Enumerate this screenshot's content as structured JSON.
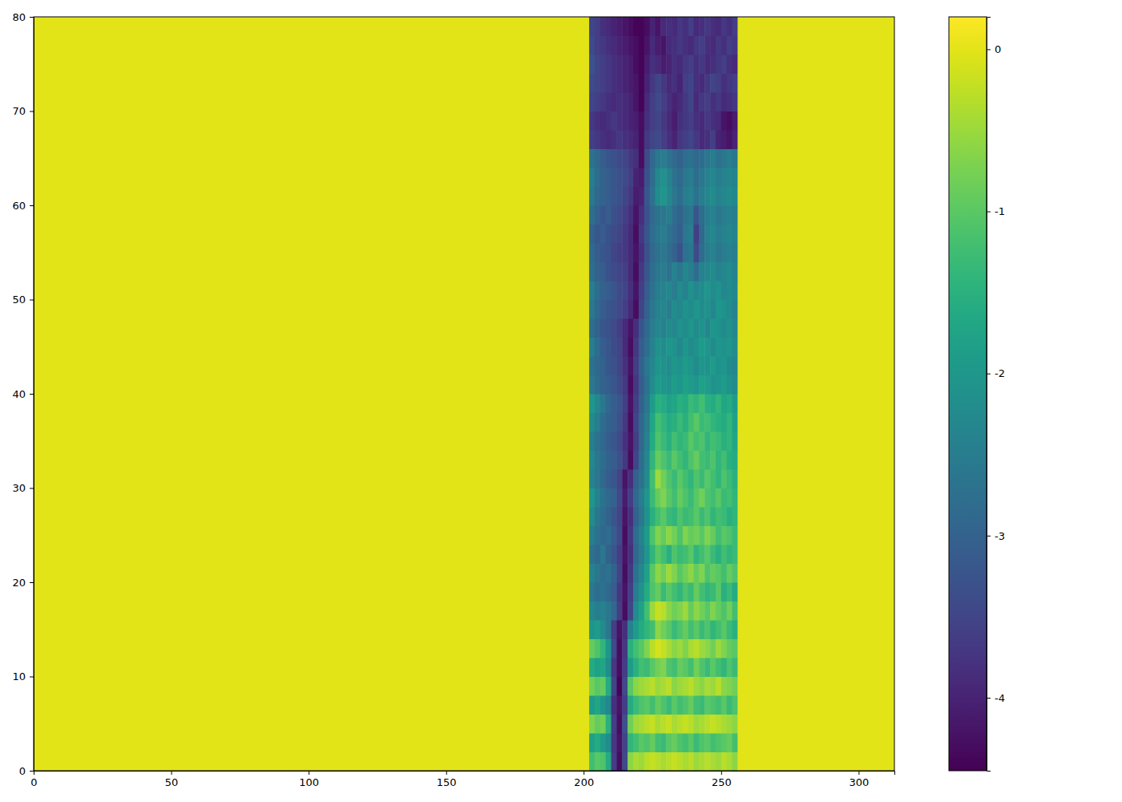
{
  "chart_data": {
    "type": "heatmap",
    "xlim": [
      0,
      313
    ],
    "ylim": [
      0,
      80
    ],
    "xticks": [
      0,
      50,
      100,
      150,
      200,
      250,
      300
    ],
    "yticks": [
      0,
      10,
      20,
      30,
      40,
      50,
      60,
      70,
      80
    ],
    "x_edges": [
      0,
      202,
      204,
      206,
      208,
      210,
      212,
      214,
      216,
      218,
      220,
      222,
      224,
      226,
      228,
      230,
      232,
      234,
      236,
      238,
      240,
      242,
      244,
      246,
      248,
      250,
      252,
      254,
      256,
      313
    ],
    "y_edges": [
      0,
      2,
      4,
      6,
      8,
      10,
      12,
      14,
      16,
      18,
      20,
      22,
      24,
      26,
      28,
      30,
      32,
      34,
      36,
      38,
      40,
      42,
      44,
      46,
      48,
      50,
      52,
      54,
      56,
      58,
      60,
      62,
      64,
      66,
      68,
      70,
      72,
      74,
      76,
      78,
      80
    ],
    "z": [
      [
        0,
        -1.2,
        -1.0,
        -1.1,
        -1.6,
        -3.6,
        -4.3,
        -3.4,
        -0.6,
        -0.4,
        -0.5,
        -0.3,
        -0.2,
        -0.3,
        -0.4,
        -0.3,
        -0.2,
        -0.3,
        -0.4,
        -0.3,
        -0.5,
        -0.4,
        -0.3,
        -0.4,
        -0.5,
        -0.3,
        -0.4,
        -0.6,
        0
      ],
      [
        0,
        -1.8,
        -1.6,
        -1.9,
        -2.2,
        -3.7,
        -4.2,
        -3.5,
        -1.4,
        -1.2,
        -1.0,
        -1.1,
        -0.9,
        -1.2,
        -1.3,
        -1.0,
        -0.9,
        -1.1,
        -1.2,
        -1.0,
        -1.3,
        -1.1,
        -1.0,
        -1.2,
        -1.1,
        -1.0,
        -0.9,
        -1.2,
        0
      ],
      [
        0,
        -0.7,
        -0.9,
        -0.8,
        -1.5,
        -3.6,
        -4.3,
        -3.3,
        -0.8,
        -0.5,
        -0.4,
        -0.3,
        -0.2,
        -0.4,
        -0.3,
        -0.2,
        -0.4,
        -0.3,
        -0.2,
        -0.3,
        -0.5,
        -0.4,
        -0.3,
        -0.2,
        -0.3,
        -0.4,
        -0.5,
        -0.6,
        0
      ],
      [
        0,
        -1.9,
        -1.7,
        -2.0,
        -2.3,
        -3.8,
        -4.2,
        -3.6,
        -1.6,
        -1.3,
        -1.1,
        -1.0,
        -1.2,
        -0.9,
        -1.1,
        -1.3,
        -1.0,
        -1.2,
        -1.1,
        -0.9,
        -1.2,
        -1.3,
        -1.0,
        -1.1,
        -1.2,
        -1.0,
        -1.3,
        -1.1,
        0
      ],
      [
        0,
        -0.8,
        -1.0,
        -0.9,
        -1.6,
        -3.5,
        -4.4,
        -3.4,
        -1.0,
        -0.6,
        -0.5,
        -0.4,
        -0.3,
        -0.5,
        -0.4,
        -0.3,
        -0.6,
        -0.5,
        -0.4,
        -0.3,
        -0.5,
        -0.6,
        -0.4,
        -0.5,
        -0.3,
        -0.6,
        -0.7,
        -0.8,
        0
      ],
      [
        0,
        -1.6,
        -1.8,
        -1.7,
        -2.2,
        -3.7,
        -4.3,
        -3.6,
        -1.9,
        -1.5,
        -1.2,
        -1.3,
        -1.0,
        -0.8,
        -0.7,
        -1.1,
        -1.2,
        -0.9,
        -1.0,
        -1.2,
        -0.8,
        -1.1,
        -1.3,
        -1.0,
        -1.2,
        -1.4,
        -1.1,
        -1.3,
        0
      ],
      [
        0,
        -0.9,
        -1.1,
        -1.4,
        -2.0,
        -3.4,
        -4.3,
        -3.7,
        -1.5,
        -1.2,
        -1.0,
        -0.7,
        -0.3,
        -0.1,
        -0.2,
        -0.4,
        -0.6,
        -0.5,
        -0.7,
        -0.4,
        -0.3,
        -0.5,
        -0.6,
        -0.8,
        -0.5,
        -0.7,
        -0.9,
        -1.0,
        0
      ],
      [
        0,
        -2.0,
        -1.9,
        -2.2,
        -2.6,
        -3.6,
        -4.2,
        -3.8,
        -2.4,
        -1.9,
        -1.6,
        -1.4,
        -1.2,
        -0.6,
        -0.8,
        -1.0,
        -1.3,
        -1.1,
        -0.9,
        -1.2,
        -1.0,
        -1.3,
        -1.1,
        -1.4,
        -1.2,
        -1.0,
        -1.3,
        -1.5,
        0
      ],
      [
        0,
        -2.3,
        -2.5,
        -2.4,
        -2.6,
        -2.9,
        -3.6,
        -4.3,
        -3.5,
        -2.2,
        -1.8,
        -1.2,
        -0.5,
        -0.2,
        -0.3,
        -0.6,
        -0.8,
        -0.7,
        -0.5,
        -0.9,
        -0.6,
        -0.8,
        -1.0,
        -0.7,
        -0.9,
        -1.1,
        -0.8,
        -1.2,
        0
      ],
      [
        0,
        -2.6,
        -2.8,
        -2.7,
        -2.9,
        -3.1,
        -3.7,
        -4.2,
        -3.6,
        -2.5,
        -2.1,
        -1.6,
        -1.1,
        -0.9,
        -1.3,
        -1.0,
        -1.2,
        -1.4,
        -1.1,
        -1.3,
        -0.9,
        -1.2,
        -1.4,
        -1.3,
        -1.0,
        -1.5,
        -1.3,
        -1.6,
        0
      ],
      [
        0,
        -2.4,
        -2.6,
        -2.8,
        -2.7,
        -3.0,
        -3.5,
        -4.3,
        -3.7,
        -2.7,
        -2.3,
        -1.8,
        -1.0,
        -0.6,
        -0.8,
        -0.5,
        -0.7,
        -1.0,
        -0.8,
        -0.6,
        -0.9,
        -0.7,
        -1.1,
        -0.9,
        -1.0,
        -1.2,
        -0.9,
        -1.1,
        0
      ],
      [
        0,
        -2.7,
        -2.9,
        -2.6,
        -3.0,
        -3.2,
        -3.6,
        -4.2,
        -3.8,
        -2.9,
        -2.5,
        -2.0,
        -1.4,
        -1.0,
        -1.2,
        -1.5,
        -1.1,
        -1.3,
        -1.2,
        -1.0,
        -1.4,
        -1.2,
        -1.0,
        -1.3,
        -1.5,
        -1.2,
        -1.4,
        -1.3,
        0
      ],
      [
        0,
        -2.5,
        -2.7,
        -2.9,
        -2.8,
        -3.1,
        -3.4,
        -4.3,
        -3.7,
        -2.8,
        -2.4,
        -1.9,
        -1.1,
        -0.7,
        -0.9,
        -0.6,
        -0.8,
        -1.1,
        -0.7,
        -0.9,
        -0.8,
        -1.0,
        -0.7,
        -0.9,
        -1.2,
        -1.0,
        -1.1,
        -1.3,
        0
      ],
      [
        0,
        -2.2,
        -2.6,
        -2.8,
        -3.0,
        -3.2,
        -3.5,
        -4.2,
        -3.8,
        -3.0,
        -2.6,
        -2.1,
        -1.5,
        -1.2,
        -1.0,
        -1.3,
        -1.4,
        -1.1,
        -1.3,
        -1.2,
        -1.0,
        -1.3,
        -1.1,
        -1.4,
        -1.2,
        -1.3,
        -1.5,
        -1.4,
        0
      ],
      [
        0,
        -2.0,
        -2.4,
        -2.7,
        -2.9,
        -3.0,
        -3.4,
        -4.1,
        -3.6,
        -2.9,
        -2.5,
        -2.0,
        -1.3,
        -0.9,
        -0.7,
        -1.0,
        -1.2,
        -0.9,
        -1.1,
        -1.3,
        -1.0,
        -0.8,
        -1.1,
        -1.2,
        -1.0,
        -1.3,
        -1.2,
        -1.4,
        0
      ],
      [
        0,
        -2.4,
        -2.6,
        -2.9,
        -3.1,
        -3.2,
        -3.5,
        -4.2,
        -3.8,
        -3.0,
        -2.7,
        -2.2,
        -1.2,
        -0.5,
        -0.8,
        -1.1,
        -1.3,
        -1.0,
        -1.2,
        -1.4,
        -1.1,
        -1.3,
        -1.0,
        -1.2,
        -1.4,
        -1.1,
        -1.3,
        -1.5,
        0
      ],
      [
        0,
        -2.3,
        -2.6,
        -2.8,
        -3.0,
        -3.1,
        -3.3,
        -3.7,
        -4.3,
        -3.5,
        -2.8,
        -2.3,
        -1.4,
        -0.9,
        -1.1,
        -1.3,
        -1.0,
        -1.2,
        -1.4,
        -1.1,
        -0.9,
        -1.2,
        -1.3,
        -1.1,
        -1.4,
        -1.2,
        -1.5,
        -1.6,
        0
      ],
      [
        0,
        -2.5,
        -2.7,
        -2.9,
        -3.1,
        -3.2,
        -3.4,
        -3.8,
        -4.2,
        -3.6,
        -2.9,
        -2.4,
        -1.6,
        -1.1,
        -1.3,
        -1.5,
        -1.2,
        -1.4,
        -1.3,
        -1.0,
        -1.2,
        -1.1,
        -1.4,
        -1.2,
        -1.3,
        -1.5,
        -1.4,
        -1.7,
        0
      ],
      [
        0,
        -2.2,
        -2.5,
        -2.8,
        -3.0,
        -3.1,
        -3.3,
        -3.7,
        -4.3,
        -3.5,
        -2.9,
        -2.5,
        -1.7,
        -1.2,
        -1.4,
        -1.6,
        -1.5,
        -1.3,
        -1.5,
        -1.2,
        -1.0,
        -1.3,
        -1.2,
        -1.4,
        -1.5,
        -1.6,
        -1.4,
        -1.8,
        0
      ],
      [
        0,
        -2.0,
        -2.3,
        -2.6,
        -2.9,
        -3.1,
        -3.2,
        -3.6,
        -4.2,
        -3.6,
        -3.0,
        -2.6,
        -1.9,
        -1.5,
        -1.6,
        -1.8,
        -1.7,
        -1.5,
        -1.6,
        -1.3,
        -1.4,
        -1.2,
        -1.5,
        -1.6,
        -1.4,
        -1.7,
        -1.6,
        -1.9,
        0
      ],
      [
        0,
        -2.6,
        -2.8,
        -3.0,
        -3.1,
        -3.2,
        -3.4,
        -3.7,
        -4.3,
        -3.7,
        -3.1,
        -2.7,
        -2.2,
        -1.9,
        -2.0,
        -2.1,
        -1.9,
        -2.0,
        -1.8,
        -1.9,
        -2.0,
        -1.8,
        -1.9,
        -2.1,
        -2.0,
        -1.9,
        -2.1,
        -2.2,
        0
      ],
      [
        0,
        -2.7,
        -2.9,
        -3.0,
        -3.2,
        -3.3,
        -3.5,
        -3.8,
        -4.2,
        -3.6,
        -3.0,
        -2.6,
        -2.3,
        -2.0,
        -2.1,
        -2.2,
        -2.0,
        -2.1,
        -1.9,
        -2.0,
        -2.2,
        -2.0,
        -2.1,
        -1.9,
        -2.1,
        -2.0,
        -2.2,
        -2.3,
        0
      ],
      [
        0,
        -2.5,
        -2.8,
        -3.1,
        -3.2,
        -3.4,
        -3.5,
        -3.9,
        -4.3,
        -3.7,
        -3.1,
        -2.8,
        -2.4,
        -2.1,
        -2.2,
        -2.0,
        -2.1,
        -2.3,
        -2.0,
        -2.2,
        -2.1,
        -1.9,
        -2.0,
        -2.2,
        -2.0,
        -2.1,
        -2.0,
        -2.2,
        0
      ],
      [
        0,
        -2.8,
        -3.0,
        -3.2,
        -3.3,
        -3.4,
        -3.6,
        -3.9,
        -4.2,
        -3.8,
        -3.2,
        -2.9,
        -2.5,
        -2.3,
        -2.4,
        -2.2,
        -2.3,
        -2.1,
        -2.2,
        -2.0,
        -2.2,
        -2.1,
        -2.3,
        -2.0,
        -2.1,
        -2.2,
        -2.1,
        -2.3,
        0
      ],
      [
        0,
        -2.6,
        -2.9,
        -3.1,
        -3.2,
        -3.3,
        -3.4,
        -3.6,
        -3.9,
        -4.3,
        -3.5,
        -3.0,
        -2.6,
        -2.4,
        -2.3,
        -2.5,
        -2.2,
        -2.3,
        -2.1,
        -2.2,
        -2.0,
        -2.2,
        -2.1,
        -2.3,
        -2.0,
        -2.1,
        -2.2,
        -2.4,
        0
      ],
      [
        0,
        -2.5,
        -2.8,
        -3.0,
        -3.1,
        -3.2,
        -3.4,
        -3.5,
        -3.8,
        -4.2,
        -3.6,
        -3.1,
        -2.7,
        -2.5,
        -2.4,
        -2.3,
        -2.5,
        -2.2,
        -2.4,
        -2.1,
        -2.3,
        -2.2,
        -2.0,
        -2.2,
        -2.1,
        -2.3,
        -2.2,
        -2.3,
        0
      ],
      [
        0,
        -2.8,
        -3.0,
        -3.1,
        -3.3,
        -3.4,
        -3.5,
        -3.6,
        -3.9,
        -4.3,
        -3.7,
        -3.2,
        -2.8,
        -2.6,
        -2.5,
        -2.7,
        -2.4,
        -2.6,
        -2.3,
        -2.5,
        -2.8,
        -2.4,
        -2.3,
        -2.2,
        -2.4,
        -2.3,
        -2.2,
        -2.4,
        0
      ],
      [
        0,
        -2.9,
        -3.1,
        -3.2,
        -3.3,
        -3.5,
        -3.6,
        -3.7,
        -3.9,
        -4.2,
        -3.8,
        -3.3,
        -2.9,
        -2.7,
        -2.6,
        -2.8,
        -3.0,
        -3.3,
        -2.7,
        -2.6,
        -3.4,
        -2.8,
        -2.5,
        -2.4,
        -2.6,
        -2.5,
        -2.4,
        -2.5,
        0
      ],
      [
        0,
        -3.0,
        -3.2,
        -3.1,
        -3.3,
        -3.4,
        -3.5,
        -3.7,
        -3.9,
        -4.3,
        -3.7,
        -3.2,
        -2.8,
        -2.6,
        -2.5,
        -2.7,
        -2.9,
        -3.1,
        -2.6,
        -2.5,
        -3.6,
        -2.9,
        -2.4,
        -2.3,
        -2.5,
        -2.4,
        -2.3,
        -2.4,
        0
      ],
      [
        0,
        -2.8,
        -3.0,
        -3.2,
        -3.1,
        -3.3,
        -3.4,
        -3.6,
        -3.8,
        -4.2,
        -3.8,
        -3.3,
        -2.9,
        -2.7,
        -2.6,
        -2.5,
        -2.8,
        -3.0,
        -2.7,
        -2.6,
        -3.2,
        -2.8,
        -2.5,
        -2.4,
        -2.6,
        -2.5,
        -2.4,
        -2.5,
        0
      ],
      [
        0,
        -2.6,
        -2.9,
        -3.0,
        -3.1,
        -3.2,
        -3.3,
        -3.5,
        -3.7,
        -4.1,
        -4.0,
        -3.2,
        -2.7,
        -2.2,
        -2.0,
        -2.3,
        -2.6,
        -2.8,
        -2.5,
        -2.4,
        -2.7,
        -2.5,
        -2.3,
        -2.2,
        -2.4,
        -2.3,
        -2.2,
        -2.3,
        0
      ],
      [
        0,
        -2.5,
        -2.8,
        -3.0,
        -3.1,
        -3.2,
        -3.3,
        -3.4,
        -3.6,
        -4.0,
        -4.1,
        -3.3,
        -2.8,
        -2.3,
        -2.1,
        -2.4,
        -2.7,
        -2.9,
        -2.6,
        -2.5,
        -2.8,
        -2.6,
        -2.4,
        -2.3,
        -2.5,
        -2.4,
        -2.3,
        -2.4,
        0
      ],
      [
        0,
        -2.7,
        -2.9,
        -3.1,
        -3.2,
        -3.3,
        -3.4,
        -3.5,
        -3.7,
        -3.8,
        -4.3,
        -3.4,
        -2.9,
        -2.6,
        -2.5,
        -2.7,
        -2.9,
        -3.0,
        -2.8,
        -2.7,
        -2.9,
        -2.8,
        -2.6,
        -2.5,
        -2.7,
        -2.6,
        -2.5,
        -2.6,
        0
      ],
      [
        0,
        -3.6,
        -3.7,
        -3.8,
        -3.9,
        -3.8,
        -3.7,
        -3.8,
        -3.9,
        -4.0,
        -4.3,
        -3.7,
        -3.5,
        -3.4,
        -3.6,
        -3.8,
        -4.0,
        -3.7,
        -3.6,
        -3.5,
        -3.7,
        -3.9,
        -3.8,
        -3.6,
        -4.0,
        -4.1,
        -4.2,
        -4.0,
        0
      ],
      [
        0,
        -3.7,
        -3.8,
        -3.9,
        -3.8,
        -3.7,
        -3.8,
        -3.9,
        -4.0,
        -4.1,
        -4.3,
        -3.8,
        -3.6,
        -3.5,
        -3.7,
        -3.9,
        -4.1,
        -3.8,
        -3.7,
        -3.6,
        -3.8,
        -3.9,
        -3.7,
        -3.8,
        -3.9,
        -4.2,
        -4.3,
        -4.1,
        0
      ],
      [
        0,
        -3.5,
        -3.6,
        -3.7,
        -3.8,
        -3.9,
        -3.8,
        -3.9,
        -4.0,
        -4.2,
        -4.4,
        -3.9,
        -3.6,
        -3.4,
        -3.6,
        -3.8,
        -4.0,
        -3.9,
        -3.7,
        -3.5,
        -3.9,
        -3.7,
        -3.6,
        -3.8,
        -3.7,
        -3.9,
        -3.8,
        -3.7,
        0
      ],
      [
        0,
        -3.4,
        -3.5,
        -3.6,
        -3.7,
        -3.8,
        -3.9,
        -4.0,
        -4.1,
        -4.2,
        -4.4,
        -4.0,
        -3.7,
        -3.5,
        -3.7,
        -3.9,
        -3.8,
        -4.0,
        -3.6,
        -3.5,
        -3.8,
        -3.9,
        -3.7,
        -3.5,
        -3.6,
        -3.8,
        -3.7,
        -3.6,
        0
      ],
      [
        0,
        -3.3,
        -3.5,
        -3.6,
        -3.7,
        -3.8,
        -3.9,
        -4.0,
        -4.1,
        -4.3,
        -4.4,
        -4.1,
        -3.8,
        -3.9,
        -4.1,
        -4.0,
        -3.8,
        -3.9,
        -3.7,
        -3.6,
        -3.8,
        -3.7,
        -3.9,
        -3.8,
        -3.7,
        -3.6,
        -3.8,
        -3.9,
        0
      ],
      [
        0,
        -3.4,
        -3.6,
        -3.7,
        -3.8,
        -3.9,
        -4.0,
        -4.1,
        -4.2,
        -4.3,
        -4.4,
        -4.2,
        -3.9,
        -4.1,
        -4.2,
        -3.9,
        -3.8,
        -3.7,
        -3.8,
        -3.9,
        -3.7,
        -3.6,
        -3.8,
        -3.9,
        -3.7,
        -3.8,
        -3.6,
        -3.7,
        0
      ],
      [
        0,
        -3.5,
        -3.6,
        -3.8,
        -3.9,
        -4.0,
        -4.1,
        -4.2,
        -4.3,
        -4.4,
        -4.4,
        -4.3,
        -4.0,
        -4.2,
        -3.9,
        -3.8,
        -3.9,
        -3.7,
        -3.8,
        -3.6,
        -3.9,
        -3.8,
        -3.7,
        -3.8,
        -3.9,
        -3.7,
        -3.8,
        -3.6,
        0
      ]
    ],
    "colorbar": {
      "range": [
        -4.45,
        0.2
      ],
      "ticks": [
        0,
        -1,
        -2,
        -3,
        -4
      ]
    }
  }
}
